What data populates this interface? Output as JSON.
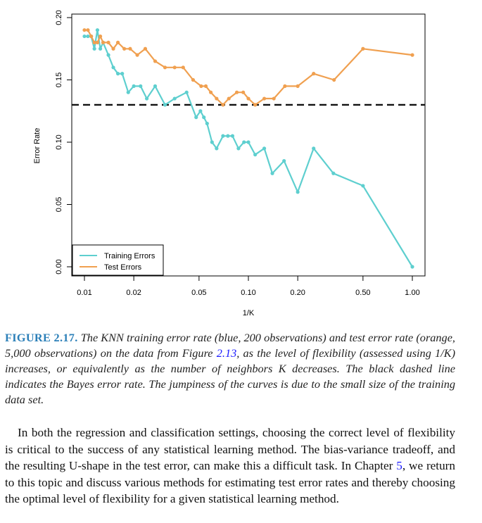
{
  "chart_data": {
    "type": "line",
    "ylabel": "Error Rate",
    "xlabel": "1/K",
    "x_scale": "log",
    "xlim": [
      0.01,
      1.0
    ],
    "ylim": [
      0.0,
      0.2
    ],
    "x_ticks": [
      0.01,
      0.02,
      0.05,
      0.1,
      0.2,
      0.5,
      1.0
    ],
    "x_tick_labels": [
      "0.01",
      "0.02",
      "0.05",
      "0.10",
      "0.20",
      "0.50",
      "1.00"
    ],
    "y_ticks": [
      0.0,
      0.05,
      0.1,
      0.15,
      0.2
    ],
    "y_tick_labels": [
      "0.00",
      "0.05",
      "0.10",
      "0.15",
      "0.20"
    ],
    "legend_position": "bottom-left",
    "hline": {
      "y": 0.13,
      "style": "dashed",
      "color": "#111111"
    },
    "series": [
      {
        "name": "Training Errors",
        "color": "#5ecfcf",
        "x": [
          0.01,
          0.0105,
          0.011,
          0.0115,
          0.012,
          0.0125,
          0.013,
          0.014,
          0.015,
          0.016,
          0.017,
          0.0185,
          0.02,
          0.022,
          0.024,
          0.027,
          0.031,
          0.0355,
          0.042,
          0.048,
          0.051,
          0.0535,
          0.056,
          0.06,
          0.064,
          0.07,
          0.075,
          0.08,
          0.087,
          0.094,
          0.1,
          0.11,
          0.125,
          0.14,
          0.165,
          0.2,
          0.25,
          0.33,
          0.5,
          1.0
        ],
        "y": [
          0.185,
          0.185,
          0.185,
          0.175,
          0.19,
          0.175,
          0.18,
          0.17,
          0.16,
          0.155,
          0.155,
          0.14,
          0.145,
          0.145,
          0.135,
          0.145,
          0.13,
          0.135,
          0.14,
          0.12,
          0.125,
          0.12,
          0.115,
          0.1,
          0.095,
          0.105,
          0.105,
          0.105,
          0.095,
          0.1,
          0.1,
          0.09,
          0.095,
          0.075,
          0.085,
          0.06,
          0.095,
          0.075,
          0.065,
          0.0
        ]
      },
      {
        "name": "Test Errors",
        "color": "#f0a050",
        "x": [
          0.01,
          0.0105,
          0.011,
          0.0115,
          0.012,
          0.0125,
          0.013,
          0.014,
          0.015,
          0.016,
          0.0175,
          0.019,
          0.021,
          0.0235,
          0.027,
          0.031,
          0.0355,
          0.04,
          0.046,
          0.0515,
          0.055,
          0.059,
          0.064,
          0.07,
          0.076,
          0.085,
          0.093,
          0.1,
          0.11,
          0.125,
          0.143,
          0.167,
          0.2,
          0.25,
          0.333,
          0.5,
          1.0
        ],
        "y": [
          0.19,
          0.19,
          0.185,
          0.18,
          0.18,
          0.185,
          0.18,
          0.18,
          0.175,
          0.18,
          0.175,
          0.175,
          0.17,
          0.175,
          0.165,
          0.16,
          0.16,
          0.16,
          0.15,
          0.145,
          0.145,
          0.14,
          0.135,
          0.13,
          0.135,
          0.14,
          0.14,
          0.135,
          0.13,
          0.135,
          0.135,
          0.145,
          0.145,
          0.155,
          0.15,
          0.175,
          0.17
        ]
      }
    ]
  },
  "caption": {
    "label": "FIGURE 2.17.",
    "text_1": " The KNN training error rate (blue, 200 observations) and test error rate (orange, 5,000 observations) on the data from Figure ",
    "ref": "2.13",
    "text_2": ", as the level of flexibility (assessed using 1/K) increases, or equivalently as the number of neighbors K decreases. The black dashed line indicates the Bayes error rate. The jumpiness of the curves is due to the small size of the training data set."
  },
  "body": {
    "text_1": "In both the regression and classification settings, choosing the correct level of flexibility is critical to the success of any statistical learning method. The bias-variance tradeoff, and the resulting U-shape in the test error, can make this a difficult task. In Chapter ",
    "ref": "5",
    "text_2": ", we return to this topic and discuss various methods for estimating test error rates and thereby choosing the optimal level of flexibility for a given statistical learning method."
  }
}
